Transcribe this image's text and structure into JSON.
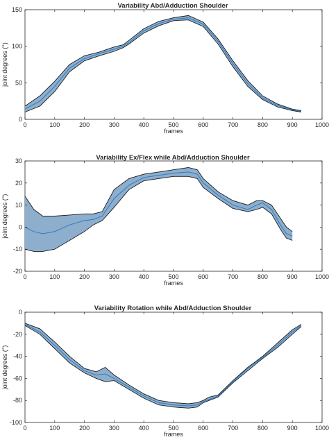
{
  "chart_data": [
    {
      "type": "area",
      "title": "Variability Abd/Adduction Shoulder",
      "xlabel": "frames",
      "ylabel": "joint degrees (°)",
      "xlim": [
        0,
        1000
      ],
      "ylim": [
        0,
        150
      ],
      "xticks": [
        0,
        100,
        200,
        300,
        400,
        500,
        600,
        700,
        800,
        900,
        1000
      ],
      "xtick_labels": [
        "0",
        "100",
        "200",
        "300",
        "400",
        "500",
        "600",
        "700",
        "800",
        "900",
        "1000"
      ],
      "yticks": [
        0,
        50,
        100,
        150
      ],
      "ytick_labels": [
        "0",
        "50",
        "100",
        "150"
      ],
      "grid": false,
      "colors": {
        "band": "#8eaecd",
        "edge": "#1a1a1a",
        "mean": "#2a7bc0"
      },
      "x": [
        0,
        50,
        100,
        150,
        200,
        250,
        300,
        330,
        350,
        400,
        450,
        500,
        550,
        600,
        650,
        700,
        750,
        800,
        850,
        900,
        930
      ],
      "upper": [
        18,
        32,
        52,
        75,
        87,
        92,
        99,
        102,
        108,
        124,
        134,
        139,
        142,
        133,
        110,
        80,
        53,
        32,
        21,
        14,
        12
      ],
      "mean": [
        14,
        25,
        45,
        70,
        83,
        90,
        96,
        100,
        105,
        121,
        131,
        137,
        139,
        130,
        107,
        76,
        49,
        29,
        19,
        13,
        11
      ],
      "lower": [
        10,
        18,
        38,
        65,
        80,
        87,
        93,
        98,
        103,
        118,
        128,
        135,
        136,
        127,
        103,
        72,
        45,
        27,
        17,
        12,
        10
      ]
    },
    {
      "type": "area",
      "title": "Variability Ex/Flex while Abd/Adduction Shoulder",
      "xlabel": "frames",
      "ylabel": "joint degrees (°)",
      "xlim": [
        0,
        1000
      ],
      "ylim": [
        -20,
        30
      ],
      "xticks": [
        0,
        100,
        200,
        300,
        400,
        500,
        600,
        700,
        800,
        900,
        1000
      ],
      "xtick_labels": [
        "0",
        "100",
        "200",
        "300",
        "400",
        "500",
        "600",
        "700",
        "800",
        "900",
        "1000"
      ],
      "yticks": [
        -20,
        -10,
        0,
        10,
        20,
        30
      ],
      "ytick_labels": [
        "-20",
        "-10",
        "0",
        "10",
        "20",
        "30"
      ],
      "grid": false,
      "colors": {
        "band": "#8eaecd",
        "edge": "#1a1a1a",
        "mean": "#2a7bc0"
      },
      "x": [
        0,
        30,
        60,
        100,
        150,
        200,
        230,
        260,
        300,
        350,
        400,
        450,
        500,
        550,
        580,
        600,
        650,
        700,
        750,
        780,
        800,
        830,
        860,
        880,
        900
      ],
      "upper": [
        14,
        8,
        5,
        5,
        5.5,
        6,
        6,
        7,
        17,
        22,
        24,
        25,
        26,
        27,
        26,
        22,
        16,
        12,
        10,
        12,
        12,
        10,
        4,
        0,
        -2
      ],
      "mean": [
        0,
        -2,
        -3,
        -2,
        1,
        3,
        3.5,
        5,
        13,
        19,
        22.5,
        23.5,
        24.5,
        25,
        24,
        20,
        14.5,
        10,
        8,
        10,
        11,
        8,
        1,
        -3,
        -4
      ],
      "lower": [
        -10,
        -11,
        -11,
        -10,
        -6,
        -2,
        1,
        3,
        9,
        17,
        21,
        22,
        23,
        23,
        22,
        18,
        13,
        8.5,
        7,
        8,
        9,
        6,
        -1,
        -5,
        -6
      ]
    },
    {
      "type": "area",
      "title": "Variability Rotation while Abd/Adduction Shoulder",
      "xlabel": "frames",
      "ylabel": "joint degrees (°)",
      "xlim": [
        0,
        1000
      ],
      "ylim": [
        -100,
        0
      ],
      "xticks": [
        0,
        100,
        200,
        300,
        400,
        500,
        600,
        700,
        800,
        900,
        1000
      ],
      "xtick_labels": [
        "0",
        "100",
        "200",
        "300",
        "400",
        "500",
        "600",
        "700",
        "800",
        "900",
        "1000"
      ],
      "yticks": [
        -100,
        -80,
        -60,
        -40,
        -20,
        0
      ],
      "ytick_labels": [
        "-100",
        "-80",
        "-60",
        "-40",
        "-20",
        "0"
      ],
      "grid": false,
      "colors": {
        "band": "#8eaecd",
        "edge": "#1a1a1a",
        "mean": "#2a7bc0"
      },
      "x": [
        0,
        50,
        100,
        150,
        200,
        240,
        270,
        300,
        350,
        400,
        450,
        500,
        550,
        580,
        600,
        620,
        650,
        700,
        750,
        800,
        850,
        900,
        930
      ],
      "upper": [
        -10,
        -15,
        -27,
        -40,
        -51,
        -54,
        -50,
        -57,
        -66,
        -74,
        -80,
        -82,
        -83,
        -82,
        -80,
        -77,
        -75,
        -62,
        -50,
        -40,
        -28,
        -16,
        -11
      ],
      "mean": [
        -11,
        -18,
        -30,
        -43,
        -53,
        -57,
        -56,
        -60,
        -68,
        -76,
        -82,
        -84,
        -85,
        -84,
        -81,
        -79,
        -76,
        -63,
        -51,
        -41,
        -30,
        -18,
        -12
      ],
      "lower": [
        -12,
        -20,
        -33,
        -46,
        -55,
        -60,
        -63,
        -62,
        -70,
        -78,
        -84,
        -86,
        -87,
        -86,
        -82,
        -80,
        -77,
        -64,
        -53,
        -42,
        -32,
        -20,
        -13
      ]
    }
  ]
}
